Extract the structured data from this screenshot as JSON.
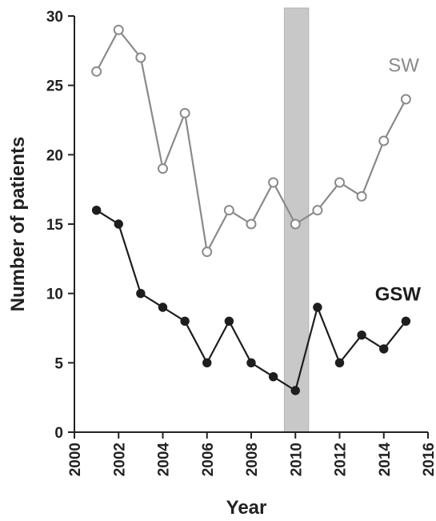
{
  "chart_data": {
    "type": "line",
    "xlabel": "Year",
    "ylabel": "Number of patients",
    "xlim": [
      2000,
      2016
    ],
    "ylim": [
      0,
      30
    ],
    "x_ticks": [
      2000,
      2002,
      2004,
      2006,
      2008,
      2010,
      2012,
      2014,
      2016
    ],
    "y_ticks": [
      0,
      5,
      10,
      15,
      20,
      25,
      30
    ],
    "x_tick_labels": [
      "2000",
      "2002",
      "2004",
      "2006",
      "2008",
      "2010",
      "2012",
      "2014",
      "2016"
    ],
    "y_tick_labels": [
      "0",
      "5",
      "10",
      "15",
      "20",
      "25",
      "30"
    ],
    "grid": false,
    "shaded_band": {
      "x_start": 2009.5,
      "x_end": 2010.6,
      "color": "#c8c8c8"
    },
    "x": [
      2001,
      2002,
      2003,
      2004,
      2005,
      2006,
      2007,
      2008,
      2009,
      2010,
      2011,
      2012,
      2013,
      2014,
      2015
    ],
    "series": [
      {
        "name": "SW",
        "marker": "open-circle",
        "color": "#8a8a8a",
        "label_at": {
          "x": 2014.2,
          "y": 26
        },
        "values": [
          26,
          29,
          27,
          19,
          23,
          13,
          16,
          15,
          18,
          15,
          16,
          18,
          17,
          21,
          24
        ]
      },
      {
        "name": "GSW",
        "marker": "filled-circle",
        "color": "#1e1e1e",
        "label_at": {
          "x": 2013.6,
          "y": 9.5
        },
        "values": [
          16,
          15,
          10,
          9,
          8,
          5,
          8,
          5,
          4,
          3,
          9,
          5,
          7,
          6,
          8
        ]
      }
    ]
  }
}
